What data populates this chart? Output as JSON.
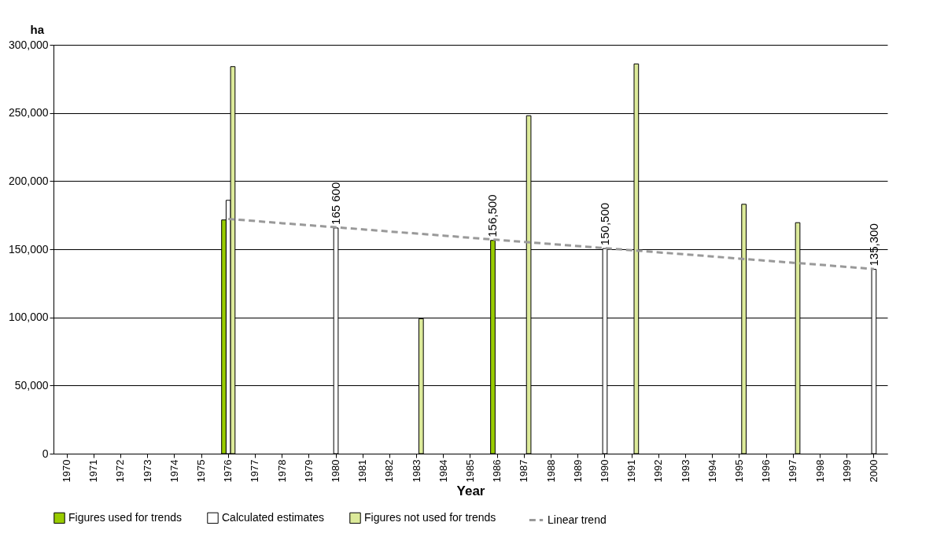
{
  "chart_data": {
    "type": "bar",
    "xlabel": "Year",
    "ylabel": "ha",
    "categories": [
      "1970",
      "1971",
      "1972",
      "1973",
      "1974",
      "1975",
      "1976",
      "1977",
      "1978",
      "1979",
      "1980",
      "1981",
      "1982",
      "1983",
      "1984",
      "1985",
      "1986",
      "1987",
      "1988",
      "1989",
      "1990",
      "1991",
      "1992",
      "1993",
      "1994",
      "1995",
      "1996",
      "1997",
      "1998",
      "1999",
      "2000"
    ],
    "series": [
      {
        "name": "Figures used for trends",
        "color": "#99cc00",
        "values": [
          null,
          null,
          null,
          null,
          null,
          null,
          171500,
          null,
          null,
          null,
          null,
          null,
          null,
          null,
          null,
          null,
          156500,
          null,
          null,
          null,
          null,
          null,
          null,
          null,
          null,
          null,
          null,
          null,
          null,
          null,
          null
        ],
        "value_labels": [
          null,
          null,
          null,
          null,
          null,
          null,
          null,
          null,
          null,
          null,
          null,
          null,
          null,
          null,
          null,
          null,
          "156,500",
          null,
          null,
          null,
          null,
          null,
          null,
          null,
          null,
          null,
          null,
          null,
          null,
          null,
          null
        ]
      },
      {
        "name": "Calculated estimates",
        "color": "#ffffff",
        "values": [
          null,
          null,
          null,
          null,
          null,
          null,
          185900,
          null,
          null,
          null,
          165600,
          null,
          null,
          null,
          null,
          null,
          null,
          null,
          null,
          null,
          150500,
          null,
          null,
          null,
          null,
          null,
          null,
          null,
          null,
          null,
          135300
        ],
        "value_labels": [
          null,
          null,
          null,
          null,
          null,
          null,
          null,
          null,
          null,
          null,
          "165 600",
          null,
          null,
          null,
          null,
          null,
          null,
          null,
          null,
          null,
          "150,500",
          null,
          null,
          null,
          null,
          null,
          null,
          null,
          null,
          null,
          "135,300"
        ]
      },
      {
        "name": "Figures not used for trends",
        "color": "#dcea9a",
        "values": [
          null,
          null,
          null,
          null,
          null,
          null,
          284000,
          null,
          null,
          null,
          null,
          null,
          null,
          99000,
          null,
          null,
          null,
          248000,
          null,
          null,
          null,
          286000,
          null,
          null,
          null,
          183000,
          null,
          169500,
          null,
          null,
          null
        ]
      },
      {
        "name": "Linear trend",
        "type": "line",
        "color": "#999999",
        "line_style": "dashed",
        "values": [
          null,
          null,
          null,
          null,
          null,
          null,
          172200,
          170700,
          169100,
          167600,
          166100,
          164600,
          163000,
          161500,
          160000,
          158400,
          156900,
          155400,
          153800,
          152300,
          150800,
          149300,
          147700,
          146200,
          144700,
          143100,
          141600,
          140100,
          138600,
          137000,
          135500
        ]
      }
    ],
    "ylim": [
      0,
      300000
    ],
    "yticks": [
      0,
      {
        "value": 50000,
        "label": "50,000"
      },
      {
        "value": 100000,
        "label": "100,000"
      },
      {
        "value": 150000,
        "label": "150,000"
      },
      {
        "value": 200000,
        "label": "200,000"
      },
      {
        "value": 250000,
        "label": "250,000"
      },
      {
        "value": 300000,
        "label": "300,000"
      }
    ],
    "grid": "y",
    "legend": "bottom"
  }
}
